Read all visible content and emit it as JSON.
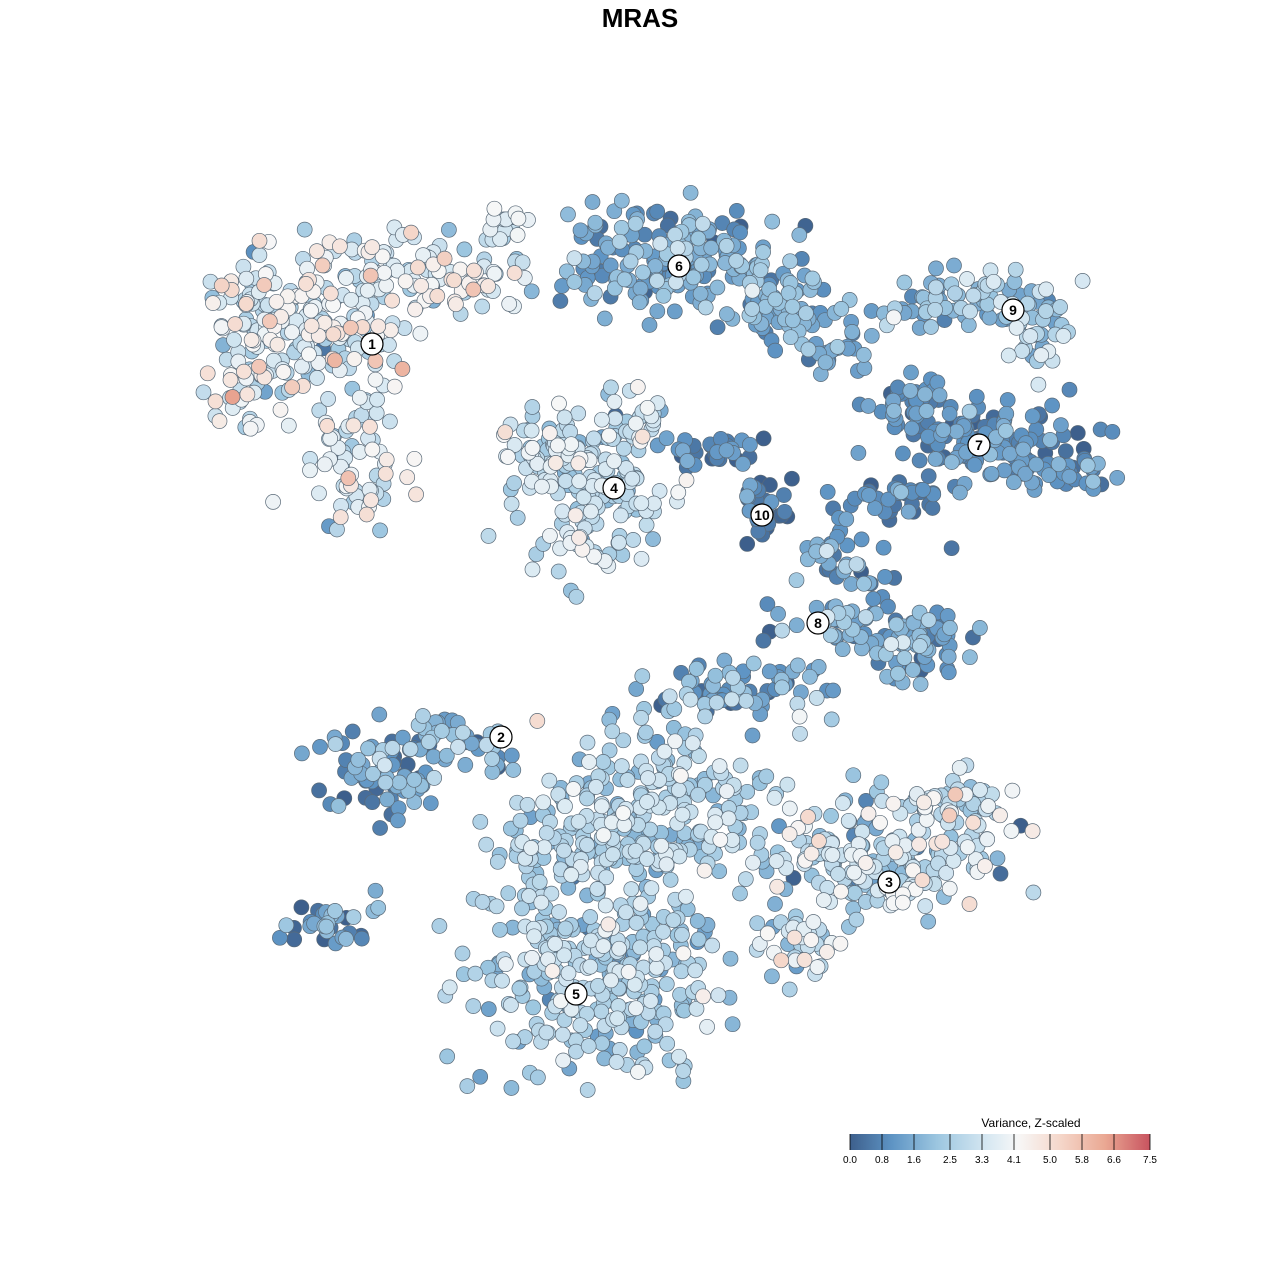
{
  "chart_data": {
    "type": "scatter",
    "title": "MRAS",
    "legend": {
      "title": "Variance, Z-scaled",
      "position": "bottom-right",
      "ticks": [
        "0.0",
        "0.8",
        "1.6",
        "2.5",
        "3.3",
        "4.1",
        "5.0",
        "5.8",
        "6.6",
        "7.5"
      ],
      "range": [
        0.0,
        7.5
      ]
    },
    "palette": {
      "stops": [
        "#3d5f8c",
        "#5e94c4",
        "#9cc6e0",
        "#d7e8f2",
        "#f7f7f7",
        "#f5d7ca",
        "#eaa893",
        "#c8535f"
      ]
    },
    "clusters": [
      {
        "label": "1",
        "mean": 3.6,
        "spread": 0.9
      },
      {
        "label": "2",
        "mean": 1.2,
        "spread": 0.9
      },
      {
        "label": "3",
        "mean": 2.9,
        "spread": 1.0
      },
      {
        "label": "4",
        "mean": 2.9,
        "spread": 0.8
      },
      {
        "label": "5",
        "mean": 2.6,
        "spread": 0.7
      },
      {
        "label": "6",
        "mean": 1.5,
        "spread": 0.7
      },
      {
        "label": "7",
        "mean": 0.9,
        "spread": 0.5
      },
      {
        "label": "8",
        "mean": 1.4,
        "spread": 0.8
      },
      {
        "label": "9",
        "mean": 2.2,
        "spread": 0.9
      },
      {
        "label": "10",
        "mean": 0.6,
        "spread": 0.5
      }
    ]
  }
}
